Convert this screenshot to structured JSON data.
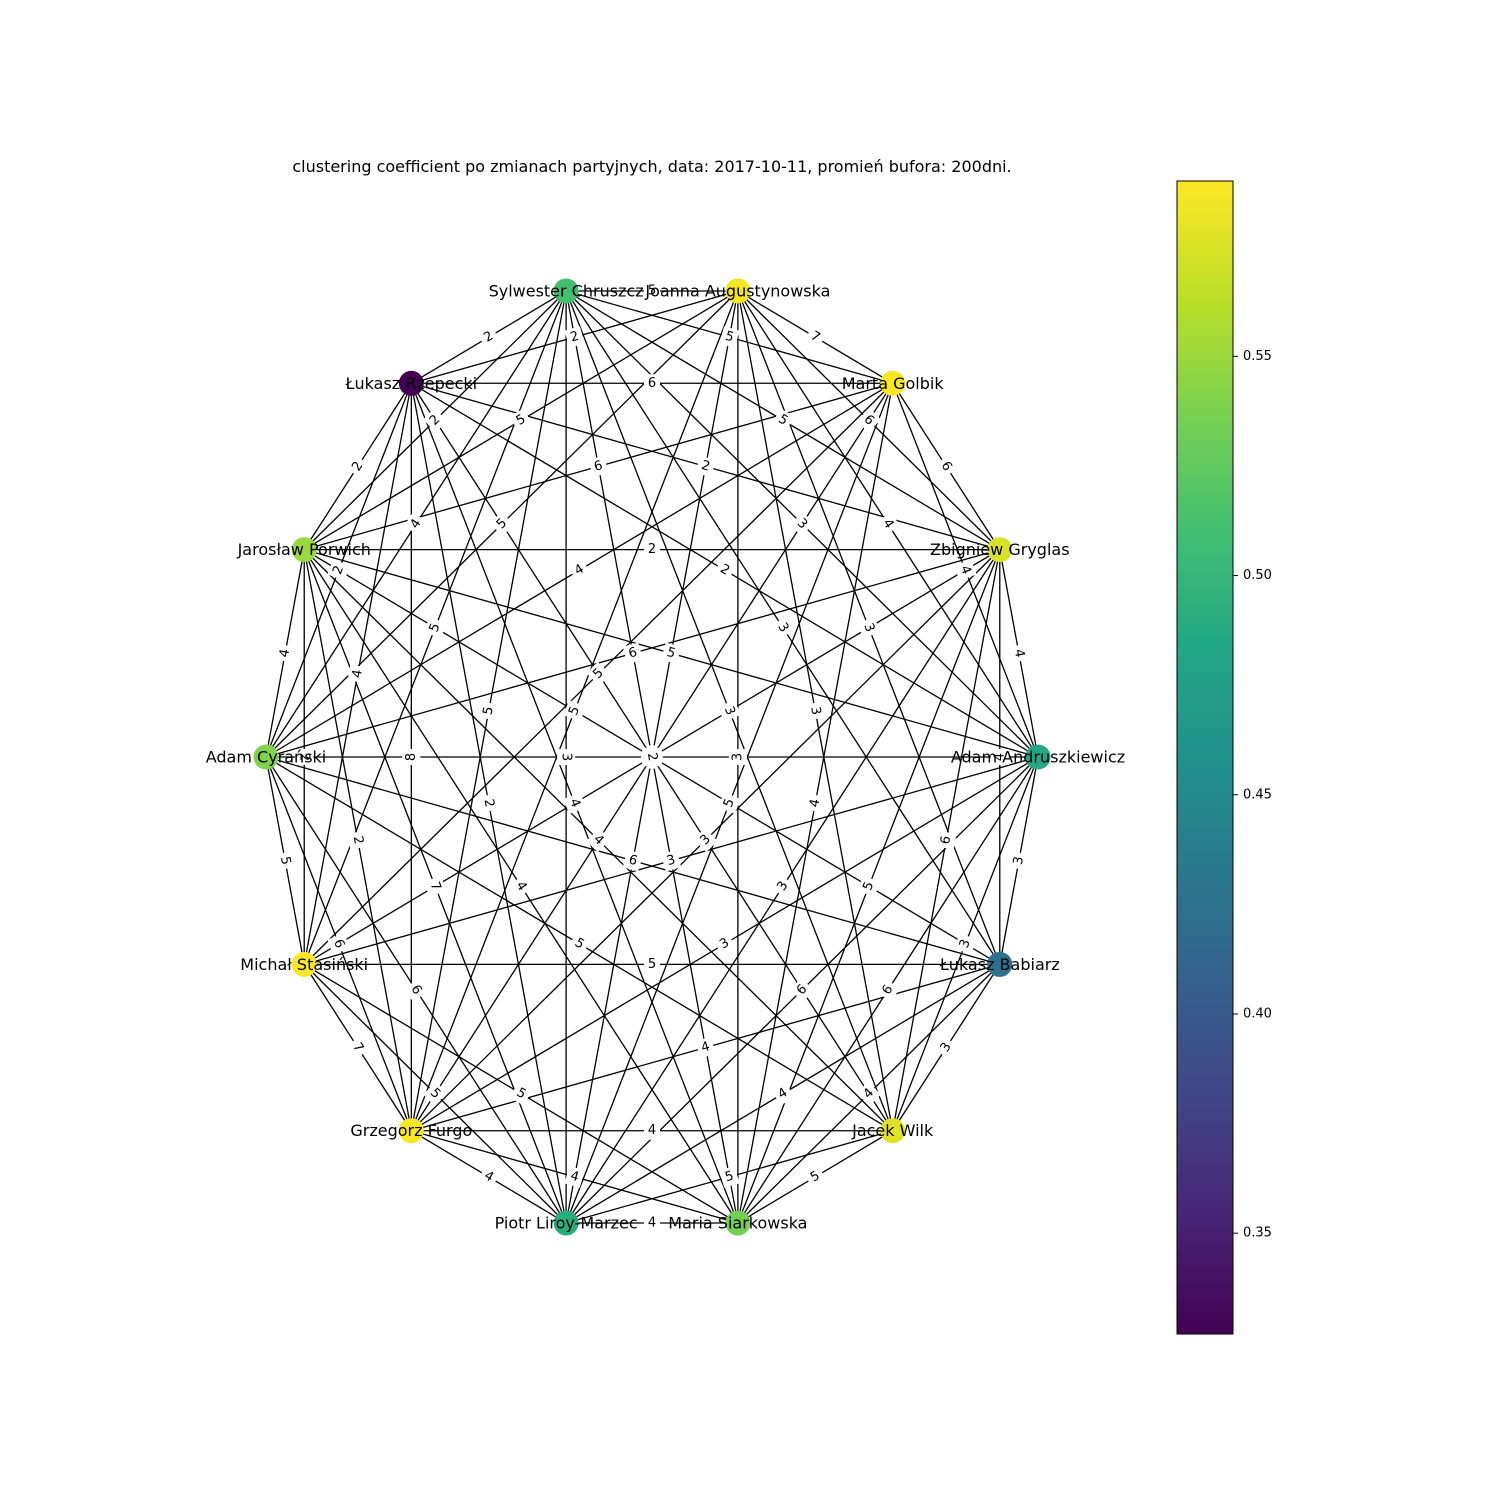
{
  "title": "clustering coefficient po zmianach partyjnych, data: 2017-10-11, promień bufora: 200dni.",
  "colorbar": {
    "colormap": "viridis",
    "min": 0.327,
    "max": 0.59,
    "ticks": [
      0.35,
      0.4,
      0.45,
      0.5,
      0.55
    ],
    "tick_labels": [
      "0.35",
      "0.40",
      "0.45",
      "0.50",
      "0.55"
    ]
  },
  "nodes": [
    {
      "name": "Joanna Augustynowska",
      "value": 0.585
    },
    {
      "name": "Marta Golbik",
      "value": 0.588
    },
    {
      "name": "Zbigniew Gryglas",
      "value": 0.575
    },
    {
      "name": "Adam Andruszkiewicz",
      "value": 0.485
    },
    {
      "name": "Łukasz Babiarz",
      "value": 0.425
    },
    {
      "name": "Jacek Wilk",
      "value": 0.578
    },
    {
      "name": "Maria Siarkowska",
      "value": 0.535
    },
    {
      "name": "Piotr Liroy-Marzec",
      "value": 0.49
    },
    {
      "name": "Grzegorz Furgo",
      "value": 0.588
    },
    {
      "name": "Michał Stasiński",
      "value": 0.59
    },
    {
      "name": "Adam Cyrański",
      "value": 0.54
    },
    {
      "name": "Jarosław Porwich",
      "value": 0.55
    },
    {
      "name": "Łukasz Rzepecki",
      "value": 0.327
    },
    {
      "name": "Sylwester Chruszcz",
      "value": 0.51
    }
  ],
  "edges": [
    {
      "source": 0,
      "target": 1,
      "weight": "7"
    },
    {
      "source": 1,
      "target": 2,
      "weight": "6"
    },
    {
      "source": 2,
      "target": 3,
      "weight": "4"
    },
    {
      "source": 3,
      "target": 4,
      "weight": "3"
    },
    {
      "source": 4,
      "target": 5,
      "weight": "3"
    },
    {
      "source": 5,
      "target": 6,
      "weight": "5"
    },
    {
      "source": 6,
      "target": 7,
      "weight": "4"
    },
    {
      "source": 7,
      "target": 8,
      "weight": "4"
    },
    {
      "source": 8,
      "target": 9,
      "weight": "7"
    },
    {
      "source": 9,
      "target": 10,
      "weight": "5"
    },
    {
      "source": 10,
      "target": 11,
      "weight": "4"
    },
    {
      "source": 11,
      "target": 12,
      "weight": "2"
    },
    {
      "source": 12,
      "target": 13,
      "weight": "2"
    },
    {
      "source": 13,
      "target": 0,
      "weight": "5"
    },
    {
      "source": 13,
      "target": 2,
      "weight": "5"
    },
    {
      "source": 12,
      "target": 3,
      "weight": "2"
    },
    {
      "source": 11,
      "target": 4,
      "weight": "5"
    },
    {
      "source": 10,
      "target": 5,
      "weight": "5"
    },
    {
      "source": 9,
      "target": 6,
      "weight": "5"
    },
    {
      "source": 0,
      "target": 8,
      "weight": "5"
    },
    {
      "source": 1,
      "target": 7,
      "weight": "5"
    },
    {
      "source": 13,
      "target": 9,
      "weight": "5"
    },
    {
      "source": 2,
      "target": 6,
      "weight": "5"
    },
    {
      "source": 0,
      "target": 2,
      "weight": "6"
    },
    {
      "source": 1,
      "target": 13,
      "weight": "5"
    },
    {
      "source": 13,
      "target": 11,
      "weight": "2"
    },
    {
      "source": 12,
      "target": 10,
      "weight": "2"
    },
    {
      "source": 11,
      "target": 9,
      "weight": "2"
    },
    {
      "source": 10,
      "target": 8,
      "weight": "6"
    },
    {
      "source": 9,
      "target": 7,
      "weight": "5"
    },
    {
      "source": 8,
      "target": 6,
      "weight": "4"
    },
    {
      "source": 7,
      "target": 5,
      "weight": "5"
    },
    {
      "source": 6,
      "target": 4,
      "weight": "4"
    },
    {
      "source": 5,
      "target": 3,
      "weight": "3"
    },
    {
      "source": 4,
      "target": 2,
      "weight": "4"
    },
    {
      "source": 3,
      "target": 1,
      "weight": "4"
    },
    {
      "source": 0,
      "target": 12,
      "weight": "2"
    },
    {
      "source": 12,
      "target": 1,
      "weight": "6"
    },
    {
      "source": 0,
      "target": 3,
      "weight": "4"
    },
    {
      "source": 13,
      "target": 3,
      "weight": "3"
    },
    {
      "source": 2,
      "target": 12,
      "weight": "2"
    },
    {
      "source": 13,
      "target": 10,
      "weight": "4"
    },
    {
      "source": 3,
      "target": 6,
      "weight": "6"
    },
    {
      "source": 12,
      "target": 9,
      "weight": "4"
    },
    {
      "source": 2,
      "target": 5,
      "weight": "6"
    },
    {
      "source": 11,
      "target": 8,
      "weight": "2"
    },
    {
      "source": 4,
      "target": 7,
      "weight": "4"
    },
    {
      "source": 10,
      "target": 7,
      "weight": "6"
    },
    {
      "source": 5,
      "target": 8,
      "weight": "4"
    },
    {
      "source": 9,
      "target": 4,
      "weight": "5"
    },
    {
      "source": 13,
      "target": 7,
      "weight": "3"
    },
    {
      "source": 12,
      "target": 6,
      "weight": "4"
    },
    {
      "source": 11,
      "target": 6,
      "weight": "4"
    },
    {
      "source": 10,
      "target": 3,
      "weight": "6"
    },
    {
      "source": 9,
      "target": 3,
      "weight": "3"
    },
    {
      "source": 8,
      "target": 2,
      "weight": "3"
    },
    {
      "source": 7,
      "target": 0,
      "weight": "6"
    },
    {
      "source": 8,
      "target": 1,
      "weight": "7"
    },
    {
      "source": 0,
      "target": 4,
      "weight": "3"
    },
    {
      "source": 11,
      "target": 1,
      "weight": "6"
    },
    {
      "source": 12,
      "target": 5,
      "weight": "4"
    },
    {
      "source": 13,
      "target": 4,
      "weight": "3"
    },
    {
      "source": 11,
      "target": 3,
      "weight": "5"
    },
    {
      "source": 10,
      "target": 2,
      "weight": "6"
    },
    {
      "source": 9,
      "target": 2,
      "weight": "5"
    },
    {
      "source": 8,
      "target": 3,
      "weight": "3"
    },
    {
      "source": 7,
      "target": 12,
      "weight": "2"
    },
    {
      "source": 6,
      "target": 13,
      "weight": "2"
    },
    {
      "source": 5,
      "target": 0,
      "weight": "3"
    },
    {
      "source": 4,
      "target": 10,
      "weight": "6"
    },
    {
      "source": 11,
      "target": 0,
      "weight": "5"
    },
    {
      "source": 12,
      "target": 8,
      "weight": "8"
    },
    {
      "source": 13,
      "target": 5,
      "weight": "3"
    },
    {
      "source": 1,
      "target": 6,
      "weight": "4"
    },
    {
      "source": 2,
      "target": 7,
      "weight": "3"
    },
    {
      "source": 9,
      "target": 1,
      "weight": "5"
    },
    {
      "source": 10,
      "target": 1,
      "weight": "4"
    },
    {
      "source": 8,
      "target": 4,
      "weight": "4"
    },
    {
      "source": 11,
      "target": 5,
      "weight": "4"
    },
    {
      "source": 6,
      "target": 0,
      "weight": "3"
    },
    {
      "source": 11,
      "target": 7,
      "weight": "7"
    },
    {
      "source": 13,
      "target": 8,
      "weight": "5"
    },
    {
      "source": 2,
      "target": 11,
      "weight": "2"
    },
    {
      "source": 0,
      "target": 10,
      "weight": "5"
    },
    {
      "source": 3,
      "target": 7,
      "weight": "6"
    }
  ]
}
